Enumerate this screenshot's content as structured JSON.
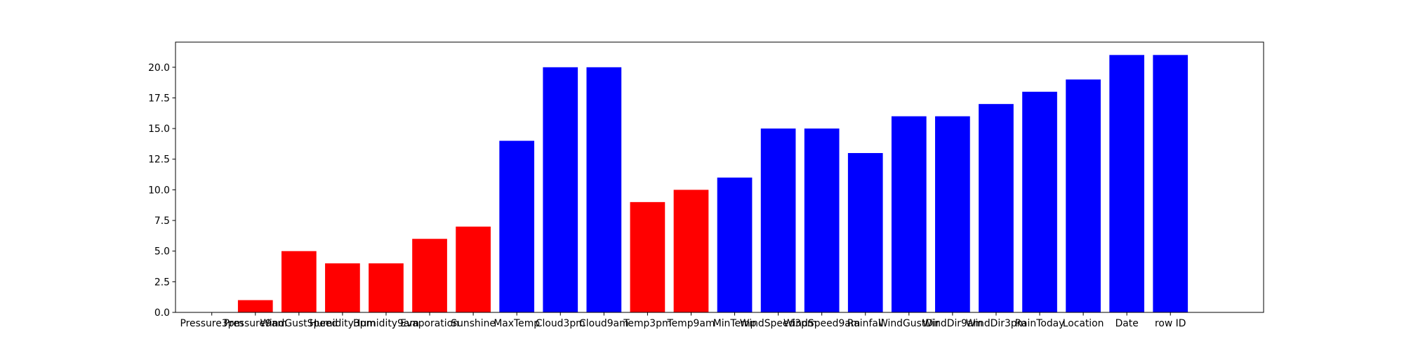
{
  "chart_data": {
    "type": "bar",
    "title": "",
    "xlabel": "",
    "ylabel": "",
    "categories": [
      "Pressure3pm",
      "Pressure9am",
      "WindGustSpeed",
      "Humidity3pm",
      "Humidity9am",
      "Evaporation",
      "Sunshine",
      "MaxTemp",
      "Cloud3pm",
      "Cloud9am",
      "Temp3pm",
      "Temp9am",
      "MinTemp",
      "WindSpeed3pm",
      "WindSpeed9am",
      "Rainfall",
      "WindGustDir",
      "WindDir9am",
      "WindDir3pm",
      "RainToday",
      "Location",
      "Date",
      "row ID"
    ],
    "values": [
      0,
      1,
      5,
      4,
      4,
      6,
      7,
      14,
      20,
      20,
      9,
      10,
      11,
      15,
      15,
      13,
      16,
      16,
      17,
      18,
      19,
      21,
      21
    ],
    "bar_colors": [
      "#ff0000",
      "#ff0000",
      "#ff0000",
      "#ff0000",
      "#ff0000",
      "#ff0000",
      "#ff0000",
      "#0000ff",
      "#0000ff",
      "#0000ff",
      "#ff0000",
      "#ff0000",
      "#0000ff",
      "#0000ff",
      "#0000ff",
      "#0000ff",
      "#0000ff",
      "#0000ff",
      "#0000ff",
      "#0000ff",
      "#0000ff",
      "#0000ff",
      "#0000ff"
    ],
    "ylim": [
      0,
      22.05
    ],
    "yticks": [
      "0.0",
      "2.5",
      "5.0",
      "7.5",
      "10.0",
      "12.5",
      "15.0",
      "17.5",
      "20.0"
    ],
    "grid": false,
    "legend": "none"
  }
}
